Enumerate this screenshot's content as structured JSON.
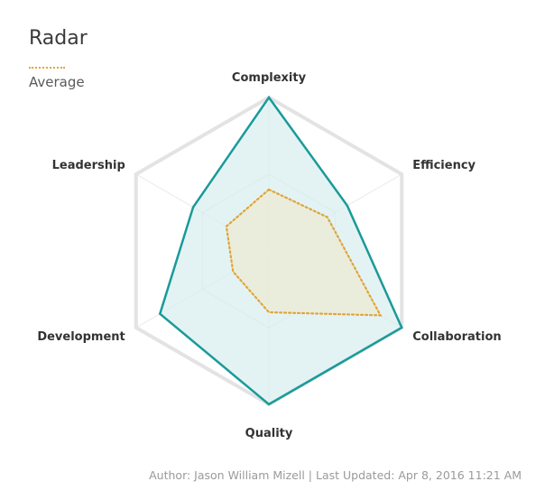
{
  "title": "Radar",
  "legend": [
    {
      "label": "Average",
      "color": "#e2a43a",
      "style": "dotted"
    }
  ],
  "footer": {
    "text": "Author: Jason William Mizell  |  Last Updated: Apr 8, 2016 11:21 AM"
  },
  "chart_data": {
    "type": "radar",
    "title": "Radar",
    "axes": [
      "Complexity",
      "Efficiency",
      "Collaboration",
      "Quality",
      "Development",
      "Leadership"
    ],
    "range": [
      0,
      100
    ],
    "grid_levels": [
      50,
      100
    ],
    "series": [
      {
        "values": [
          100,
          59,
          100,
          100,
          82,
          57
        ],
        "color": "#1a9a9a",
        "fill": "#d9efef",
        "style": "solid"
      },
      {
        "name": "Average",
        "values": [
          40,
          44,
          84,
          40,
          27,
          32
        ],
        "color": "#e2a43a",
        "fill": "#ecebd3",
        "style": "dotted"
      }
    ],
    "grid": true,
    "legend_position": "top-left"
  }
}
